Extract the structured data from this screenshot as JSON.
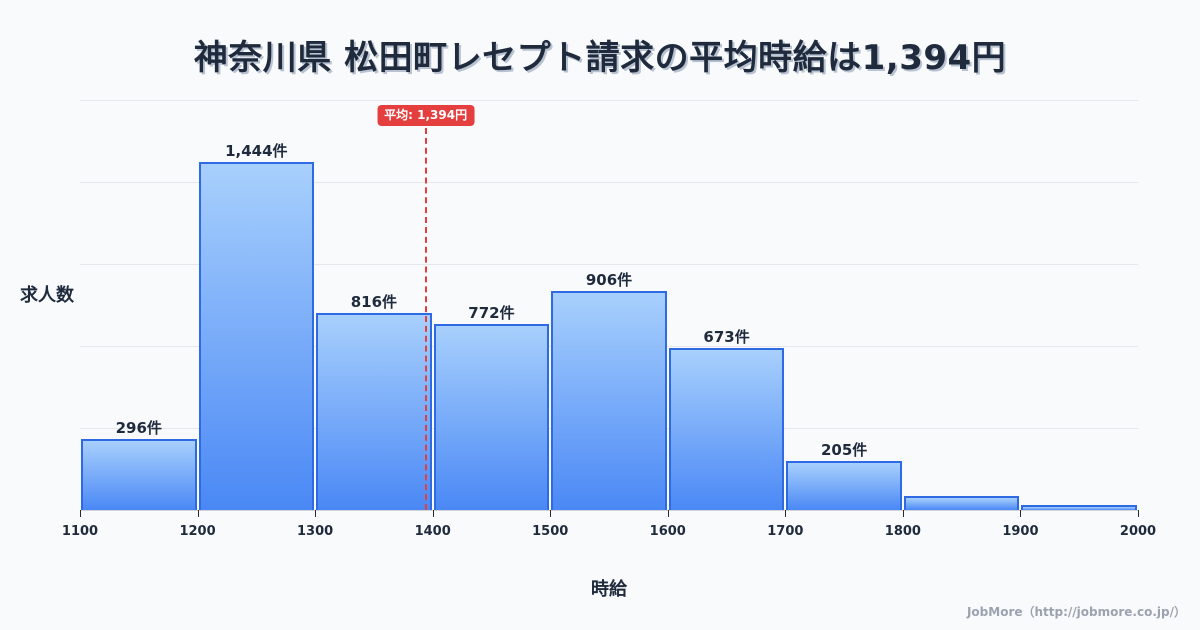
{
  "title": "神奈川県 松田町レセプト請求の平均時給は1,394円",
  "footer": "JobMore（http://jobmore.co.jp/）",
  "colors": {
    "bar_fill_top": "#a8d0fd",
    "bar_fill_bottom": "#4a88f5",
    "bar_border": "#2d6ae3",
    "mean_line": "#e53e3e",
    "title": "#1f2a3c",
    "background": "#f8fafc"
  },
  "chart_data": {
    "type": "bar",
    "subtype": "histogram",
    "title": "神奈川県 松田町レセプト請求の平均時給は1,394円",
    "xlabel": "時給",
    "ylabel": "求人数",
    "bin_edges": [
      1100,
      1200,
      1300,
      1400,
      1500,
      1600,
      1700,
      1800,
      1900,
      2000
    ],
    "categories": [
      "1100-1200",
      "1200-1300",
      "1300-1400",
      "1400-1500",
      "1500-1600",
      "1600-1700",
      "1700-1800",
      "1800-1900",
      "1900-2000"
    ],
    "values": [
      296,
      1444,
      816,
      772,
      906,
      673,
      205,
      60,
      20
    ],
    "labels": [
      "296件",
      "1,444件",
      "816件",
      "772件",
      "906件",
      "673件",
      "205件",
      "",
      ""
    ],
    "x_ticks": [
      "1100",
      "1200",
      "1300",
      "1400",
      "1500",
      "1600",
      "1700",
      "1800",
      "1900",
      "2000"
    ],
    "xlim": [
      1100,
      2000
    ],
    "ylim": [
      0,
      1700
    ],
    "grid": true,
    "gridlines": 5,
    "legend": null,
    "annotations": [
      {
        "type": "vline",
        "x": 1394,
        "label": "平均: 1,394円",
        "style": "dashed",
        "color": "#e53e3e"
      }
    ]
  }
}
